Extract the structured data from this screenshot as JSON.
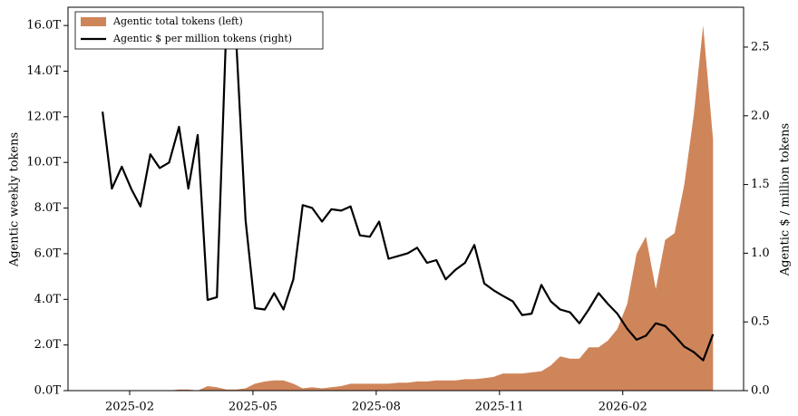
{
  "chart_data": {
    "type": "combo",
    "x": [
      2025.028,
      2025.047,
      2025.067,
      2025.086,
      2025.105,
      2025.125,
      2025.144,
      2025.163,
      2025.183,
      2025.202,
      2025.221,
      2025.241,
      2025.26,
      2025.279,
      2025.299,
      2025.318,
      2025.337,
      2025.357,
      2025.376,
      2025.395,
      2025.415,
      2025.434,
      2025.453,
      2025.473,
      2025.492,
      2025.512,
      2025.531,
      2025.55,
      2025.57,
      2025.589,
      2025.608,
      2025.628,
      2025.647,
      2025.666,
      2025.686,
      2025.705,
      2025.724,
      2025.744,
      2025.763,
      2025.782,
      2025.802,
      2025.821,
      2025.84,
      2025.86,
      2025.879,
      2025.898,
      2025.918,
      2025.937,
      2025.956,
      2025.976,
      2025.995,
      2026.014,
      2026.034,
      2026.053,
      2026.072,
      2026.092,
      2026.111,
      2026.13,
      2026.15,
      2026.169,
      2026.188,
      2026.208,
      2026.227,
      2026.246,
      2026.266
    ],
    "series": [
      {
        "name": "Agentic total tokens (left)",
        "type": "area",
        "color": "#cf855a",
        "values": [
          0,
          0,
          0,
          0,
          0,
          0,
          0,
          0,
          0.05,
          0.05,
          0,
          0.2,
          0.15,
          0.05,
          0.05,
          0.1,
          0.3,
          0.4,
          0.45,
          0.45,
          0.3,
          0.1,
          0.15,
          0.1,
          0.15,
          0.2,
          0.3,
          0.3,
          0.3,
          0.3,
          0.3,
          0.35,
          0.35,
          0.4,
          0.4,
          0.45,
          0.45,
          0.45,
          0.5,
          0.5,
          0.55,
          0.6,
          0.75,
          0.75,
          0.75,
          0.8,
          0.85,
          1.1,
          1.5,
          1.4,
          1.4,
          1.9,
          1.9,
          2.2,
          2.7,
          3.8,
          6.0,
          6.75,
          4.45,
          6.6,
          6.9,
          9.05,
          12.1,
          16.0,
          11.0
        ]
      },
      {
        "name": "Agentic $ per million tokens (right)",
        "type": "line",
        "color": "#000000",
        "axis": "y2",
        "values": [
          2.03,
          1.47,
          1.63,
          1.47,
          1.34,
          1.72,
          1.62,
          1.66,
          1.92,
          1.47,
          1.86,
          0.66,
          0.68,
          2.66,
          2.56,
          1.24,
          0.6,
          0.59,
          0.71,
          0.59,
          0.81,
          1.35,
          1.33,
          1.23,
          1.32,
          1.31,
          1.34,
          1.13,
          1.12,
          1.23,
          0.96,
          0.98,
          1.0,
          1.04,
          0.93,
          0.95,
          0.81,
          0.88,
          0.93,
          1.06,
          0.78,
          0.73,
          0.69,
          0.65,
          0.55,
          0.56,
          0.77,
          0.65,
          0.59,
          0.57,
          0.49,
          0.59,
          0.71,
          0.63,
          0.56,
          0.45,
          0.37,
          0.4,
          0.49,
          0.47,
          0.4,
          0.32,
          0.28,
          0.22,
          0.41
        ]
      }
    ],
    "ylabel": "Agentic weekly tokens",
    "y2label": "Agentic $ / million tokens",
    "xlim": [
      2024.958,
      2026.328
    ],
    "xticks": [
      {
        "value": 2025.083,
        "label": "2025-02"
      },
      {
        "value": 2025.333,
        "label": "2025-05"
      },
      {
        "value": 2025.583,
        "label": "2025-08"
      },
      {
        "value": 2025.833,
        "label": "2025-11"
      },
      {
        "value": 2026.083,
        "label": "2026-02"
      }
    ],
    "ylim": [
      0,
      16.8
    ],
    "yticks": [
      {
        "value": 0,
        "label": "0.0T"
      },
      {
        "value": 2,
        "label": "2.0T"
      },
      {
        "value": 4,
        "label": "4.0T"
      },
      {
        "value": 6,
        "label": "6.0T"
      },
      {
        "value": 8,
        "label": "8.0T"
      },
      {
        "value": 10,
        "label": "10.0T"
      },
      {
        "value": 12,
        "label": "12.0T"
      },
      {
        "value": 14,
        "label": "14.0T"
      },
      {
        "value": 16,
        "label": "16.0T"
      }
    ],
    "y2lim": [
      0,
      2.79
    ],
    "y2ticks": [
      {
        "value": 0,
        "label": "0.0"
      },
      0.5,
      {
        "value": 1,
        "label": "1.0"
      },
      1.5,
      {
        "value": 2,
        "label": "2.0"
      },
      2.5
    ],
    "legend": "upper left"
  }
}
